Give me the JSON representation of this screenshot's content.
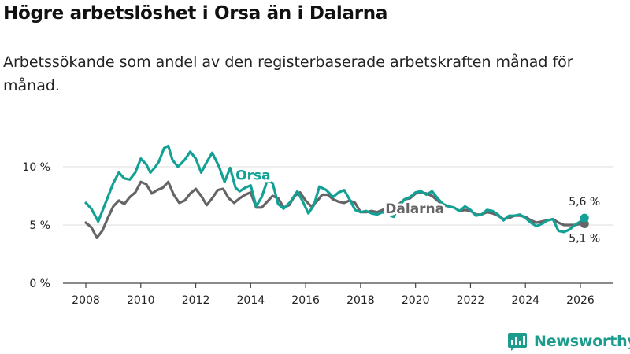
{
  "header": {
    "title": "Högre arbetslöshet i Orsa än i Dalarna",
    "subtitle": "Arbetssökande som andel av den registerbaserade arbetskraften månad för månad."
  },
  "brand": {
    "name": "Newsworthy",
    "icon": "newsworthy-logo-icon"
  },
  "chart_data": {
    "type": "line",
    "title": "Högre arbetslöshet i Orsa än i Dalarna",
    "subtitle": "Arbetssökande som andel av den registerbaserade arbetskraften månad för månad.",
    "xlabel": "",
    "ylabel": "",
    "xlim": [
      2007.6,
      2026.8
    ],
    "ylim": [
      0,
      12
    ],
    "x_ticks": [
      2008,
      2010,
      2012,
      2014,
      2016,
      2018,
      2020,
      2022,
      2024,
      2026
    ],
    "x_tick_labels": [
      "2008",
      "2010",
      "2012",
      "2014",
      "2016",
      "2018",
      "2020",
      "2022",
      "2024",
      "2026"
    ],
    "y_ticks": [
      0,
      5,
      10
    ],
    "y_tick_labels": [
      "0 %",
      "5 %",
      "10 %"
    ],
    "grid": true,
    "legend": "inline labels",
    "series": [
      {
        "name": "Orsa",
        "label": "Orsa",
        "color": "#12a194",
        "end_label": "5,6 %",
        "x": [
          2008.0,
          2008.2,
          2008.45,
          2008.65,
          2008.8,
          2009.0,
          2009.2,
          2009.4,
          2009.6,
          2009.8,
          2010.0,
          2010.2,
          2010.35,
          2010.5,
          2010.65,
          2010.85,
          2011.0,
          2011.15,
          2011.35,
          2011.6,
          2011.8,
          2012.0,
          2012.2,
          2012.4,
          2012.6,
          2012.85,
          2013.05,
          2013.25,
          2013.45,
          2013.6,
          2013.8,
          2014.0,
          2014.2,
          2014.4,
          2014.6,
          2014.8,
          2015.0,
          2015.2,
          2015.45,
          2015.7,
          2015.9,
          2016.1,
          2016.3,
          2016.5,
          2016.75,
          2017.0,
          2017.2,
          2017.4,
          2017.6,
          2017.8,
          2018.0,
          2018.2,
          2018.4,
          2018.6,
          2018.8,
          2019.0,
          2019.2,
          2019.4,
          2019.6,
          2019.8,
          2020.0,
          2020.2,
          2020.4,
          2020.6,
          2020.8,
          2021.0,
          2021.2,
          2021.4,
          2021.6,
          2021.8,
          2022.0,
          2022.2,
          2022.4,
          2022.6,
          2022.8,
          2023.0,
          2023.2,
          2023.4,
          2023.6,
          2023.8,
          2024.0,
          2024.2,
          2024.4,
          2024.6,
          2024.8,
          2025.0,
          2025.2,
          2025.4,
          2025.6,
          2025.8,
          2026.0,
          2026.15
        ],
        "values": [
          6.9,
          6.4,
          5.3,
          6.5,
          7.4,
          8.6,
          9.5,
          9.0,
          8.9,
          9.5,
          10.7,
          10.2,
          9.5,
          9.9,
          10.4,
          11.6,
          11.8,
          10.6,
          10.0,
          10.6,
          11.3,
          10.7,
          9.5,
          10.4,
          11.2,
          10.0,
          8.7,
          9.9,
          8.2,
          7.9,
          8.2,
          8.4,
          6.6,
          7.4,
          8.8,
          8.6,
          6.8,
          6.4,
          7.0,
          7.9,
          7.0,
          6.0,
          6.7,
          8.3,
          8.0,
          7.4,
          7.8,
          8.0,
          7.2,
          6.3,
          6.1,
          6.2,
          6.0,
          5.9,
          6.1,
          5.9,
          5.7,
          6.6,
          7.2,
          7.4,
          7.8,
          7.9,
          7.6,
          7.9,
          7.3,
          6.8,
          6.6,
          6.5,
          6.2,
          6.6,
          6.3,
          5.8,
          5.9,
          6.3,
          6.2,
          5.9,
          5.4,
          5.8,
          5.8,
          5.9,
          5.6,
          5.2,
          4.9,
          5.1,
          5.4,
          5.5,
          4.5,
          4.4,
          4.6,
          5.0,
          5.3,
          5.6
        ]
      },
      {
        "name": "Dalarna",
        "label": "Dalarna",
        "color": "#666466",
        "end_label": "5,1 %",
        "x": [
          2008.0,
          2008.2,
          2008.4,
          2008.6,
          2008.8,
          2009.0,
          2009.2,
          2009.4,
          2009.6,
          2009.8,
          2010.0,
          2010.2,
          2010.4,
          2010.6,
          2010.8,
          2011.0,
          2011.2,
          2011.4,
          2011.6,
          2011.8,
          2012.0,
          2012.2,
          2012.4,
          2012.6,
          2012.8,
          2013.0,
          2013.2,
          2013.4,
          2013.6,
          2013.8,
          2014.0,
          2014.2,
          2014.4,
          2014.6,
          2014.8,
          2015.0,
          2015.2,
          2015.4,
          2015.6,
          2015.8,
          2016.0,
          2016.2,
          2016.4,
          2016.6,
          2016.8,
          2017.0,
          2017.2,
          2017.4,
          2017.6,
          2017.8,
          2018.0,
          2018.2,
          2018.4,
          2018.6,
          2018.8,
          2019.0,
          2019.2,
          2019.4,
          2019.6,
          2019.8,
          2020.0,
          2020.2,
          2020.4,
          2020.6,
          2020.8,
          2021.0,
          2021.2,
          2021.4,
          2021.6,
          2021.8,
          2022.0,
          2022.2,
          2022.4,
          2022.6,
          2022.8,
          2023.0,
          2023.2,
          2023.4,
          2023.6,
          2023.8,
          2024.0,
          2024.2,
          2024.4,
          2024.6,
          2024.8,
          2025.0,
          2025.2,
          2025.4,
          2025.6,
          2025.8,
          2026.0,
          2026.15
        ],
        "values": [
          5.2,
          4.8,
          3.9,
          4.5,
          5.6,
          6.6,
          7.1,
          6.8,
          7.4,
          7.8,
          8.7,
          8.5,
          7.7,
          8.0,
          8.2,
          8.7,
          7.6,
          6.9,
          7.1,
          7.7,
          8.1,
          7.5,
          6.7,
          7.3,
          8.0,
          8.1,
          7.3,
          6.9,
          7.3,
          7.6,
          7.8,
          6.5,
          6.5,
          7.0,
          7.5,
          7.3,
          6.5,
          6.7,
          7.5,
          7.8,
          7.1,
          6.6,
          7.0,
          7.6,
          7.6,
          7.2,
          7.0,
          6.9,
          7.1,
          6.9,
          6.1,
          6.1,
          6.2,
          6.1,
          6.3,
          6.4,
          6.5,
          6.8,
          7.2,
          7.3,
          7.7,
          7.8,
          7.7,
          7.5,
          7.1,
          6.7,
          6.6,
          6.5,
          6.2,
          6.3,
          6.2,
          5.9,
          5.9,
          6.1,
          6.0,
          5.8,
          5.5,
          5.6,
          5.8,
          5.8,
          5.7,
          5.4,
          5.2,
          5.3,
          5.4,
          5.5,
          5.2,
          5.0,
          5.0,
          5.0,
          5.1,
          5.1
        ]
      }
    ]
  }
}
